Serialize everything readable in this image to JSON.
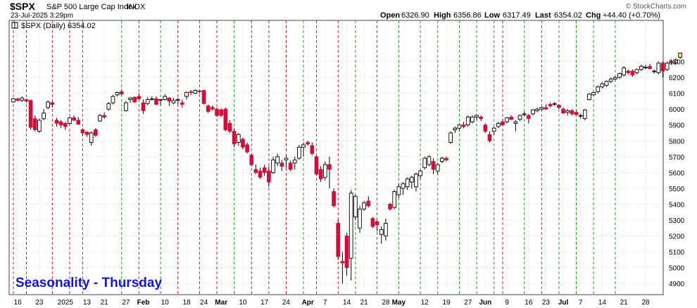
{
  "header": {
    "symbol": "$SPX",
    "name": "S&P 500 Large Cap Index",
    "exchange": "INDX",
    "date_time": "23-Jul-2025 3:29pm",
    "watermark": "© StockCharts.com",
    "ohlc": {
      "open_label": "Open",
      "open": "6326.90",
      "high_label": "High",
      "high": "6356.86",
      "low_label": "Low",
      "low": "6317.49",
      "last_label": "Last",
      "last": "6354.02",
      "chg_label": "Chg",
      "chg": "+44.40 (+0.70%)"
    }
  },
  "legend": {
    "text": "$SPX (Daily) 6354.02"
  },
  "annotation": "Seasonality - Thursday",
  "colors": {
    "up": "#ffffff",
    "down": "#d0103a",
    "black": "#000000",
    "green_line": "#2a9d2a",
    "red_line": "#d42020",
    "annotation": "#1515d0",
    "last_candle": "#ffee55"
  },
  "chart_data": {
    "type": "candlestick",
    "title": "$SPX (Daily) 6354.02",
    "ylim": [
      4850,
      6400
    ],
    "y_ticks": [
      4900,
      5000,
      5100,
      5200,
      5300,
      5400,
      5500,
      5600,
      5700,
      5800,
      5900,
      6000,
      6100,
      6200,
      6300
    ],
    "x_tick_labels": [
      {
        "i": 1,
        "label": "16"
      },
      {
        "i": 6,
        "label": "23"
      },
      {
        "i": 12,
        "label": "2025"
      },
      {
        "i": 17,
        "label": "13"
      },
      {
        "i": 21,
        "label": "21"
      },
      {
        "i": 26,
        "label": "27"
      },
      {
        "i": 30,
        "label": "Feb"
      },
      {
        "i": 35,
        "label": "10"
      },
      {
        "i": 40,
        "label": "18"
      },
      {
        "i": 44,
        "label": "24"
      },
      {
        "i": 48,
        "label": "Mar"
      },
      {
        "i": 53,
        "label": "10"
      },
      {
        "i": 58,
        "label": "17"
      },
      {
        "i": 63,
        "label": "24"
      },
      {
        "i": 68,
        "label": "Apr"
      },
      {
        "i": 72,
        "label": "7"
      },
      {
        "i": 77,
        "label": "14"
      },
      {
        "i": 81,
        "label": "21"
      },
      {
        "i": 86,
        "label": "28"
      },
      {
        "i": 89,
        "label": "May"
      },
      {
        "i": 95,
        "label": "12"
      },
      {
        "i": 100,
        "label": "19"
      },
      {
        "i": 105,
        "label": "27"
      },
      {
        "i": 109,
        "label": "Jun"
      },
      {
        "i": 114,
        "label": "9"
      },
      {
        "i": 119,
        "label": "16"
      },
      {
        "i": 123,
        "label": "23"
      },
      {
        "i": 127,
        "label": "Jul"
      },
      {
        "i": 131,
        "label": "7"
      },
      {
        "i": 136,
        "label": "14"
      },
      {
        "i": 141,
        "label": "21"
      },
      {
        "i": 146,
        "label": "28"
      }
    ],
    "vertical_lines": [
      {
        "i": 0,
        "color": "red"
      },
      {
        "i": 3,
        "color": "red"
      },
      {
        "i": 9,
        "color": "red"
      },
      {
        "i": 13,
        "color": "red"
      },
      {
        "i": 16,
        "color": "red"
      },
      {
        "i": 25,
        "color": "green"
      },
      {
        "i": 29,
        "color": "red"
      },
      {
        "i": 34,
        "color": "green"
      },
      {
        "i": 38,
        "color": "red"
      },
      {
        "i": 43,
        "color": "red"
      },
      {
        "i": 47,
        "color": "red"
      },
      {
        "i": 51,
        "color": "green"
      },
      {
        "i": 55,
        "color": "red"
      },
      {
        "i": 59,
        "color": "red"
      },
      {
        "i": 63,
        "color": "red"
      },
      {
        "i": 67,
        "color": "green"
      },
      {
        "i": 70,
        "color": "red"
      },
      {
        "i": 75,
        "color": "red"
      },
      {
        "i": 79,
        "color": "green"
      },
      {
        "i": 84,
        "color": "red"
      },
      {
        "i": 89,
        "color": "green"
      },
      {
        "i": 94,
        "color": "green"
      },
      {
        "i": 98,
        "color": "green"
      },
      {
        "i": 103,
        "color": "green"
      },
      {
        "i": 107,
        "color": "green"
      },
      {
        "i": 111,
        "color": "green"
      },
      {
        "i": 113,
        "color": "red"
      },
      {
        "i": 118,
        "color": "green"
      },
      {
        "i": 122,
        "color": "red"
      },
      {
        "i": 126,
        "color": "green"
      },
      {
        "i": 130,
        "color": "green"
      },
      {
        "i": 134,
        "color": "green"
      },
      {
        "i": 139,
        "color": "green"
      }
    ],
    "candles": [
      {
        "o": 6045,
        "h": 6070,
        "l": 6040,
        "c": 6065
      },
      {
        "o": 6064,
        "h": 6072,
        "l": 6050,
        "c": 6055
      },
      {
        "o": 6055,
        "h": 6080,
        "l": 6045,
        "c": 6070
      },
      {
        "o": 6060,
        "h": 6065,
        "l": 6040,
        "c": 6050
      },
      {
        "o": 6055,
        "h": 6060,
        "l": 5870,
        "c": 5885
      },
      {
        "o": 5940,
        "h": 5960,
        "l": 5860,
        "c": 5870
      },
      {
        "o": 5860,
        "h": 5940,
        "l": 5850,
        "c": 5930
      },
      {
        "o": 5940,
        "h": 6000,
        "l": 5930,
        "c": 5975
      },
      {
        "o": 6010,
        "h": 6055,
        "l": 6000,
        "c": 6045
      },
      {
        "o": 6040,
        "h": 6050,
        "l": 6010,
        "c": 6030
      },
      {
        "o": 5930,
        "h": 5945,
        "l": 5890,
        "c": 5910
      },
      {
        "o": 5920,
        "h": 5930,
        "l": 5880,
        "c": 5900
      },
      {
        "o": 5910,
        "h": 5920,
        "l": 5870,
        "c": 5890
      },
      {
        "o": 5910,
        "h": 5950,
        "l": 5900,
        "c": 5945
      },
      {
        "o": 5945,
        "h": 5960,
        "l": 5925,
        "c": 5930
      },
      {
        "o": 5930,
        "h": 5950,
        "l": 5900,
        "c": 5905
      },
      {
        "o": 5870,
        "h": 5880,
        "l": 5830,
        "c": 5850
      },
      {
        "o": 5855,
        "h": 5860,
        "l": 5825,
        "c": 5840
      },
      {
        "o": 5790,
        "h": 5860,
        "l": 5770,
        "c": 5850
      },
      {
        "o": 5870,
        "h": 5880,
        "l": 5825,
        "c": 5835
      },
      {
        "o": 5925,
        "h": 5970,
        "l": 5920,
        "c": 5960
      },
      {
        "o": 5960,
        "h": 5980,
        "l": 5940,
        "c": 5950
      },
      {
        "o": 6000,
        "h": 6045,
        "l": 5990,
        "c": 6035
      },
      {
        "o": 6040,
        "h": 6090,
        "l": 6030,
        "c": 6080
      },
      {
        "o": 6090,
        "h": 6110,
        "l": 6080,
        "c": 6105
      },
      {
        "o": 6110,
        "h": 6125,
        "l": 6090,
        "c": 6095
      },
      {
        "o": 5990,
        "h": 6050,
        "l": 5985,
        "c": 6040
      },
      {
        "o": 6060,
        "h": 6075,
        "l": 6040,
        "c": 6070
      },
      {
        "o": 6075,
        "h": 6080,
        "l": 6040,
        "c": 6045
      },
      {
        "o": 6080,
        "h": 6100,
        "l": 6060,
        "c": 6065
      },
      {
        "o": 6040,
        "h": 6060,
        "l": 5970,
        "c": 5990
      },
      {
        "o": 6035,
        "h": 6075,
        "l": 6025,
        "c": 6060
      },
      {
        "o": 6060,
        "h": 6080,
        "l": 6055,
        "c": 6065
      },
      {
        "o": 6065,
        "h": 6080,
        "l": 6025,
        "c": 6030
      },
      {
        "o": 6055,
        "h": 6065,
        "l": 6025,
        "c": 6060
      },
      {
        "o": 6060,
        "h": 6095,
        "l": 6055,
        "c": 6080
      },
      {
        "o": 6070,
        "h": 6075,
        "l": 6020,
        "c": 6050
      },
      {
        "o": 6040,
        "h": 6070,
        "l": 6030,
        "c": 6055
      },
      {
        "o": 6055,
        "h": 6070,
        "l": 6030,
        "c": 6060
      },
      {
        "o": 6040,
        "h": 6060,
        "l": 6010,
        "c": 6030
      },
      {
        "o": 6080,
        "h": 6110,
        "l": 6060,
        "c": 6105
      },
      {
        "o": 6110,
        "h": 6120,
        "l": 6090,
        "c": 6105
      },
      {
        "o": 6100,
        "h": 6125,
        "l": 6095,
        "c": 6118
      },
      {
        "o": 6115,
        "h": 6120,
        "l": 6100,
        "c": 6110
      },
      {
        "o": 6118,
        "h": 6122,
        "l": 6030,
        "c": 6035
      },
      {
        "o": 6020,
        "h": 6030,
        "l": 5975,
        "c": 5985
      },
      {
        "o": 6010,
        "h": 6025,
        "l": 5990,
        "c": 6000
      },
      {
        "o": 6000,
        "h": 6010,
        "l": 5950,
        "c": 5960
      },
      {
        "o": 5995,
        "h": 6005,
        "l": 5950,
        "c": 5960
      },
      {
        "o": 6000,
        "h": 6010,
        "l": 5860,
        "c": 5870
      },
      {
        "o": 5910,
        "h": 5930,
        "l": 5850,
        "c": 5860
      },
      {
        "o": 5860,
        "h": 5880,
        "l": 5760,
        "c": 5780
      },
      {
        "o": 5790,
        "h": 5850,
        "l": 5770,
        "c": 5840
      },
      {
        "o": 5810,
        "h": 5820,
        "l": 5745,
        "c": 5760
      },
      {
        "o": 5775,
        "h": 5790,
        "l": 5720,
        "c": 5730
      },
      {
        "o": 5710,
        "h": 5720,
        "l": 5640,
        "c": 5650
      },
      {
        "o": 5620,
        "h": 5650,
        "l": 5590,
        "c": 5600
      },
      {
        "o": 5610,
        "h": 5630,
        "l": 5560,
        "c": 5570
      },
      {
        "o": 5630,
        "h": 5650,
        "l": 5580,
        "c": 5600
      },
      {
        "o": 5610,
        "h": 5640,
        "l": 5510,
        "c": 5540
      },
      {
        "o": 5600,
        "h": 5700,
        "l": 5590,
        "c": 5680
      },
      {
        "o": 5660,
        "h": 5720,
        "l": 5640,
        "c": 5700
      },
      {
        "o": 5660,
        "h": 5680,
        "l": 5610,
        "c": 5640
      },
      {
        "o": 5680,
        "h": 5710,
        "l": 5630,
        "c": 5690
      },
      {
        "o": 5660,
        "h": 5675,
        "l": 5610,
        "c": 5620
      },
      {
        "o": 5660,
        "h": 5700,
        "l": 5620,
        "c": 5680
      },
      {
        "o": 5690,
        "h": 5775,
        "l": 5680,
        "c": 5760
      },
      {
        "o": 5760,
        "h": 5790,
        "l": 5700,
        "c": 5775
      },
      {
        "o": 5790,
        "h": 5800,
        "l": 5770,
        "c": 5780
      },
      {
        "o": 5770,
        "h": 5790,
        "l": 5710,
        "c": 5720
      },
      {
        "o": 5700,
        "h": 5710,
        "l": 5580,
        "c": 5590
      },
      {
        "o": 5620,
        "h": 5640,
        "l": 5540,
        "c": 5560
      },
      {
        "o": 5570,
        "h": 5670,
        "l": 5550,
        "c": 5650
      },
      {
        "o": 5650,
        "h": 5700,
        "l": 5500,
        "c": 5620
      },
      {
        "o": 5480,
        "h": 5500,
        "l": 5380,
        "c": 5390
      },
      {
        "o": 5280,
        "h": 5300,
        "l": 5050,
        "c": 5070
      },
      {
        "o": 5040,
        "h": 5100,
        "l": 4900,
        "c": 5030
      },
      {
        "o": 5200,
        "h": 5220,
        "l": 4950,
        "c": 5000
      },
      {
        "o": 5060,
        "h": 5490,
        "l": 4920,
        "c": 5470
      },
      {
        "o": 5320,
        "h": 5460,
        "l": 5300,
        "c": 5450
      },
      {
        "o": 5250,
        "h": 5390,
        "l": 5220,
        "c": 5370
      },
      {
        "o": 5370,
        "h": 5420,
        "l": 5360,
        "c": 5410
      },
      {
        "o": 5420,
        "h": 5450,
        "l": 5380,
        "c": 5390
      },
      {
        "o": 5310,
        "h": 5320,
        "l": 5250,
        "c": 5260
      },
      {
        "o": 5290,
        "h": 5300,
        "l": 5230,
        "c": 5270
      },
      {
        "o": 5210,
        "h": 5260,
        "l": 5150,
        "c": 5240
      },
      {
        "o": 5200,
        "h": 5310,
        "l": 5170,
        "c": 5280
      },
      {
        "o": 5400,
        "h": 5410,
        "l": 5360,
        "c": 5370
      },
      {
        "o": 5380,
        "h": 5490,
        "l": 5370,
        "c": 5480
      },
      {
        "o": 5460,
        "h": 5530,
        "l": 5440,
        "c": 5510
      },
      {
        "o": 5500,
        "h": 5540,
        "l": 5460,
        "c": 5530
      },
      {
        "o": 5510,
        "h": 5570,
        "l": 5490,
        "c": 5560
      },
      {
        "o": 5540,
        "h": 5580,
        "l": 5500,
        "c": 5570
      },
      {
        "o": 5510,
        "h": 5600,
        "l": 5480,
        "c": 5590
      },
      {
        "o": 5580,
        "h": 5620,
        "l": 5560,
        "c": 5610
      },
      {
        "o": 5630,
        "h": 5700,
        "l": 5620,
        "c": 5690
      },
      {
        "o": 5650,
        "h": 5710,
        "l": 5640,
        "c": 5700
      },
      {
        "o": 5670,
        "h": 5690,
        "l": 5590,
        "c": 5620
      },
      {
        "o": 5610,
        "h": 5660,
        "l": 5590,
        "c": 5650
      },
      {
        "o": 5670,
        "h": 5700,
        "l": 5660,
        "c": 5690
      },
      {
        "o": 5690,
        "h": 5700,
        "l": 5670,
        "c": 5680
      },
      {
        "o": 5790,
        "h": 5860,
        "l": 5780,
        "c": 5850
      },
      {
        "o": 5870,
        "h": 5890,
        "l": 5850,
        "c": 5880
      },
      {
        "o": 5880,
        "h": 5910,
        "l": 5860,
        "c": 5900
      },
      {
        "o": 5900,
        "h": 5920,
        "l": 5880,
        "c": 5890
      },
      {
        "o": 5900,
        "h": 5960,
        "l": 5890,
        "c": 5950
      },
      {
        "o": 5920,
        "h": 5960,
        "l": 5910,
        "c": 5950
      },
      {
        "o": 5950,
        "h": 5970,
        "l": 5930,
        "c": 5960
      },
      {
        "o": 5950,
        "h": 5960,
        "l": 5925,
        "c": 5940
      },
      {
        "o": 5900,
        "h": 5910,
        "l": 5850,
        "c": 5860
      },
      {
        "o": 5840,
        "h": 5860,
        "l": 5790,
        "c": 5800
      },
      {
        "o": 5860,
        "h": 5890,
        "l": 5840,
        "c": 5880
      },
      {
        "o": 5890,
        "h": 5920,
        "l": 5880,
        "c": 5910
      },
      {
        "o": 5920,
        "h": 5935,
        "l": 5895,
        "c": 5900
      },
      {
        "o": 5920,
        "h": 5950,
        "l": 5910,
        "c": 5945
      },
      {
        "o": 5950,
        "h": 5960,
        "l": 5930,
        "c": 5935
      },
      {
        "o": 5910,
        "h": 5930,
        "l": 5860,
        "c": 5920
      },
      {
        "o": 5935,
        "h": 5965,
        "l": 5925,
        "c": 5960
      },
      {
        "o": 5965,
        "h": 5985,
        "l": 5955,
        "c": 5970
      },
      {
        "o": 5960,
        "h": 5970,
        "l": 5910,
        "c": 5940
      },
      {
        "o": 5970,
        "h": 6000,
        "l": 5960,
        "c": 5995
      },
      {
        "o": 5990,
        "h": 6010,
        "l": 5980,
        "c": 6000
      },
      {
        "o": 6000,
        "h": 6015,
        "l": 5990,
        "c": 6010
      },
      {
        "o": 6010,
        "h": 6030,
        "l": 5995,
        "c": 6000
      },
      {
        "o": 6030,
        "h": 6040,
        "l": 6010,
        "c": 6020
      },
      {
        "o": 6030,
        "h": 6045,
        "l": 6020,
        "c": 6035
      },
      {
        "o": 6025,
        "h": 6030,
        "l": 6000,
        "c": 6010
      },
      {
        "o": 6000,
        "h": 6010,
        "l": 5970,
        "c": 5975
      },
      {
        "o": 5980,
        "h": 6000,
        "l": 5960,
        "c": 5990
      },
      {
        "o": 5990,
        "h": 6000,
        "l": 5960,
        "c": 5970
      },
      {
        "o": 5980,
        "h": 5990,
        "l": 5960,
        "c": 5965
      },
      {
        "o": 5960,
        "h": 5970,
        "l": 5940,
        "c": 5960
      },
      {
        "o": 5940,
        "h": 6000,
        "l": 5930,
        "c": 5995
      },
      {
        "o": 6060,
        "h": 6100,
        "l": 6055,
        "c": 6095
      },
      {
        "o": 6090,
        "h": 6110,
        "l": 6085,
        "c": 6105
      },
      {
        "o": 6110,
        "h": 6150,
        "l": 6100,
        "c": 6140
      },
      {
        "o": 6140,
        "h": 6170,
        "l": 6130,
        "c": 6160
      },
      {
        "o": 6150,
        "h": 6180,
        "l": 6140,
        "c": 6175
      },
      {
        "o": 6175,
        "h": 6200,
        "l": 6165,
        "c": 6190
      },
      {
        "o": 6190,
        "h": 6210,
        "l": 6180,
        "c": 6200
      },
      {
        "o": 6200,
        "h": 6230,
        "l": 6190,
        "c": 6225
      },
      {
        "o": 6215,
        "h": 6270,
        "l": 6205,
        "c": 6260
      },
      {
        "o": 6240,
        "h": 6250,
        "l": 6220,
        "c": 6230
      },
      {
        "o": 6240,
        "h": 6250,
        "l": 6205,
        "c": 6215
      },
      {
        "o": 6230,
        "h": 6255,
        "l": 6220,
        "c": 6250
      },
      {
        "o": 6250,
        "h": 6280,
        "l": 6240,
        "c": 6270
      },
      {
        "o": 6260,
        "h": 6280,
        "l": 6250,
        "c": 6265
      },
      {
        "o": 6270,
        "h": 6285,
        "l": 6250,
        "c": 6255
      },
      {
        "o": 6240,
        "h": 6250,
        "l": 6225,
        "c": 6240
      },
      {
        "o": 6230,
        "h": 6300,
        "l": 6220,
        "c": 6290
      },
      {
        "o": 6290,
        "h": 6300,
        "l": 6200,
        "c": 6240
      },
      {
        "o": 6250,
        "h": 6300,
        "l": 6240,
        "c": 6290
      },
      {
        "o": 6300,
        "h": 6310,
        "l": 6280,
        "c": 6297
      },
      {
        "o": 6290,
        "h": 6320,
        "l": 6280,
        "c": 6310
      },
      {
        "o": 6326.9,
        "h": 6356.86,
        "l": 6317.49,
        "c": 6354.02
      }
    ]
  }
}
